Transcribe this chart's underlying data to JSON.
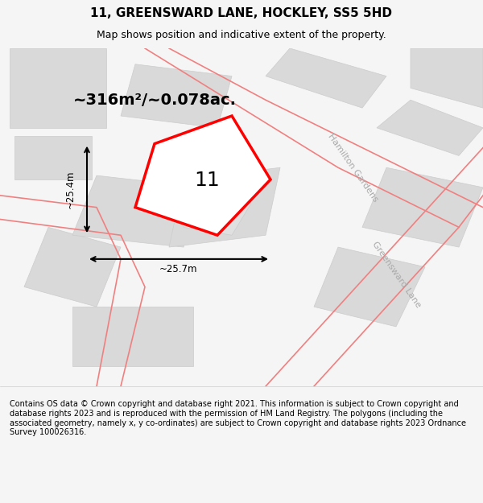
{
  "title": "11, GREENSWARD LANE, HOCKLEY, SS5 5HD",
  "subtitle": "Map shows position and indicative extent of the property.",
  "area_label": "~316m²/~0.078ac.",
  "number_label": "11",
  "dim_h": "~25.4m",
  "dim_w": "~25.7m",
  "footer": "Contains OS data © Crown copyright and database right 2021. This information is subject to Crown copyright and database rights 2023 and is reproduced with the permission of HM Land Registry. The polygons (including the associated geometry, namely x, y co-ordinates) are subject to Crown copyright and database rights 2023 Ordnance Survey 100026316.",
  "bg_color": "#f5f5f5",
  "map_bg": "#ffffff",
  "footer_bg": "#ffffff",
  "road_color": "#f08080",
  "building_color": "#d9d9d9",
  "building_edge_color": "#cccccc",
  "plot_color": "#ff0000",
  "road_label_color": "#aaaaaa",
  "figsize": [
    6.0,
    6.25
  ],
  "dpi": 100
}
